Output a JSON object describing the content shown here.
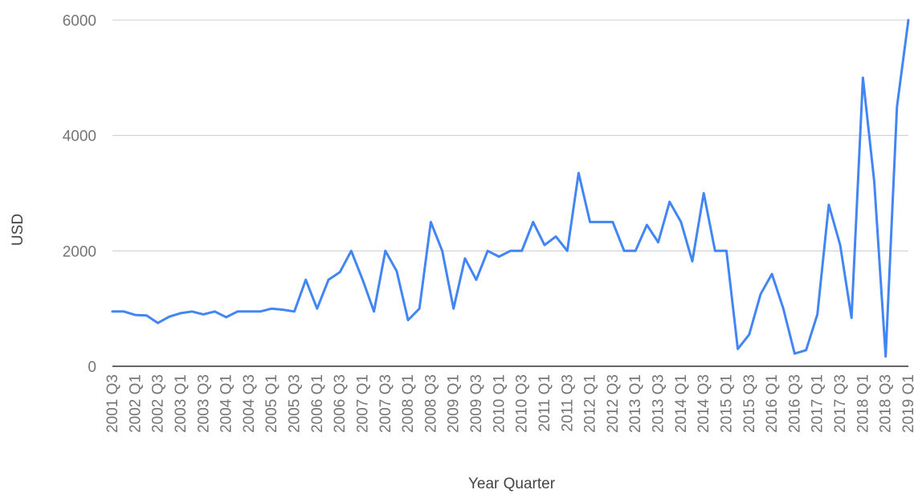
{
  "chart_data": {
    "type": "line",
    "title": "",
    "xlabel": "Year Quarter",
    "ylabel": "USD",
    "ylim": [
      0,
      6000
    ],
    "yticks": [
      0,
      2000,
      4000,
      6000
    ],
    "grid": true,
    "legend": "none",
    "line_color": "#4285f4",
    "x": [
      "2001 Q3",
      "2001 Q4",
      "2002 Q1",
      "2002 Q2",
      "2002 Q3",
      "2002 Q4",
      "2003 Q1",
      "2003 Q2",
      "2003 Q3",
      "2003 Q4",
      "2004 Q1",
      "2004 Q2",
      "2004 Q3",
      "2004 Q4",
      "2005 Q1",
      "2005 Q2",
      "2005 Q3",
      "2005 Q4",
      "2006 Q1",
      "2006 Q2",
      "2006 Q3",
      "2006 Q4",
      "2007 Q1",
      "2007 Q2",
      "2007 Q3",
      "2007 Q4",
      "2008 Q1",
      "2008 Q2",
      "2008 Q3",
      "2008 Q4",
      "2009 Q1",
      "2009 Q2",
      "2009 Q3",
      "2009 Q4",
      "2010 Q1",
      "2010 Q2",
      "2010 Q3",
      "2010 Q4",
      "2011 Q1",
      "2011 Q2",
      "2011 Q3",
      "2011 Q4",
      "2012 Q1",
      "2012 Q2",
      "2012 Q3",
      "2012 Q4",
      "2013 Q1",
      "2013 Q2",
      "2013 Q3",
      "2013 Q4",
      "2014 Q1",
      "2014 Q2",
      "2014 Q3",
      "2014 Q4",
      "2015 Q1",
      "2015 Q2",
      "2015 Q3",
      "2015 Q4",
      "2016 Q1",
      "2016 Q2",
      "2016 Q3",
      "2016 Q4",
      "2017 Q1",
      "2017 Q2",
      "2017 Q3",
      "2017 Q4",
      "2018 Q1",
      "2018 Q2",
      "2018 Q3",
      "2018 Q4",
      "2019 Q1"
    ],
    "xtick_labels": [
      "2001 Q3",
      "2002 Q1",
      "2002 Q3",
      "2003 Q1",
      "2003 Q3",
      "2004 Q1",
      "2004 Q3",
      "2005 Q1",
      "2005 Q3",
      "2006 Q1",
      "2006 Q3",
      "2007 Q1",
      "2007 Q3",
      "2008 Q1",
      "2008 Q3",
      "2009 Q1",
      "2009 Q3",
      "2010 Q1",
      "2010 Q3",
      "2011 Q1",
      "2011 Q3",
      "2012 Q1",
      "2012 Q3",
      "2013 Q1",
      "2013 Q3",
      "2014 Q1",
      "2014 Q3",
      "2015 Q1",
      "2015 Q3",
      "2016 Q1",
      "2016 Q3",
      "2017 Q1",
      "2017 Q3",
      "2018 Q1",
      "2018 Q3",
      "2019 Q1"
    ],
    "series": [
      {
        "values": [
          950,
          950,
          890,
          880,
          750,
          860,
          920,
          950,
          900,
          950,
          850,
          950,
          950,
          950,
          1000,
          980,
          950,
          1500,
          1000,
          1500,
          1630,
          2000,
          1500,
          950,
          2000,
          1650,
          800,
          1000,
          2500,
          2000,
          1000,
          1870,
          1500,
          2000,
          1900,
          2000,
          2000,
          2500,
          2100,
          2250,
          2000,
          3350,
          2500,
          2500,
          2500,
          2000,
          2000,
          2450,
          2150,
          2850,
          2500,
          1820,
          3000,
          2000,
          2000,
          300,
          550,
          1250,
          1600,
          1000,
          220,
          280,
          900,
          2800,
          2100,
          840,
          5000,
          3200,
          170,
          4500,
          6000
        ]
      }
    ]
  }
}
